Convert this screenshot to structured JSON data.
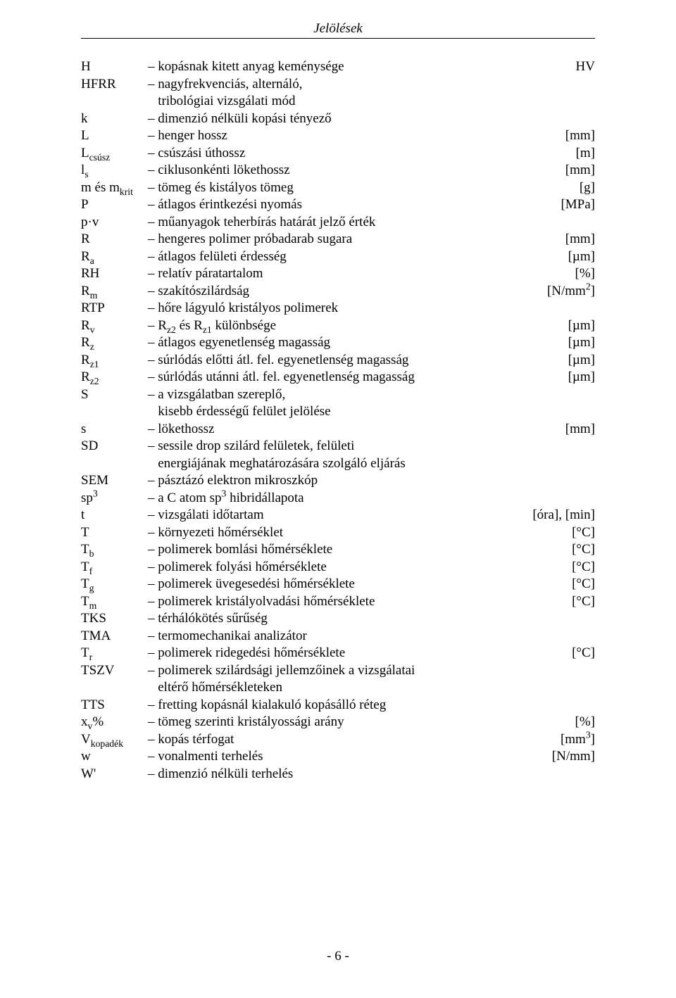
{
  "header": "Jelölések",
  "footer": "- 6 -",
  "rows": [
    {
      "sym": "H",
      "desc": "– kopásnak kitett anyag keménysége",
      "unit": "HV"
    },
    {
      "sym": "HFRR",
      "desc": "– nagyfrekvenciás, alternáló,",
      "unit": ""
    },
    {
      "sym": "",
      "desc": "   tribológiai vizsgálati mód",
      "unit": ""
    },
    {
      "sym": "k",
      "desc": "– dimenzió nélküli kopási tényező",
      "unit": ""
    },
    {
      "sym": "L",
      "desc": "– henger hossz",
      "unit": "[mm]"
    },
    {
      "sym": "L<sub>csúsz</sub>",
      "desc": "– csúszási úthossz",
      "unit": "[m]"
    },
    {
      "sym": "l<sub>s</sub>",
      "desc": "– ciklusonkénti lökethossz",
      "unit": "[mm]"
    },
    {
      "sym": "m és m<sub>krit</sub>",
      "desc": "– tömeg és kistályos tömeg",
      "unit": "[g]"
    },
    {
      "sym": "P",
      "desc": "– átlagos érintkezési nyomás",
      "unit": "[MPa]"
    },
    {
      "sym": "p·v",
      "desc": "– műanyagok teherbírás határát jelző érték",
      "unit": ""
    },
    {
      "sym": "R",
      "desc": "– hengeres polimer próbadarab sugara",
      "unit": "[mm]"
    },
    {
      "sym": "R<sub>a</sub>",
      "desc": "– átlagos felületi érdesség",
      "unit": "[µm]"
    },
    {
      "sym": "RH",
      "desc": "– relatív páratartalom",
      "unit": "[%]"
    },
    {
      "sym": "R<sub>m</sub>",
      "desc": "– szakítószilárdság",
      "unit": "[N/mm<sup>2</sup>]"
    },
    {
      "sym": "RTP",
      "desc": "– hőre lágyuló kristályos polimerek",
      "unit": ""
    },
    {
      "sym": "R<sub>v</sub>",
      "desc": "– R<sub>z2</sub> és R<sub>z1</sub> különbsége",
      "unit": "[µm]"
    },
    {
      "sym": "R<sub>z</sub>",
      "desc": "– átlagos egyenetlenség magasság",
      "unit": "[µm]"
    },
    {
      "sym": "R<sub>z1</sub>",
      "desc": "– súrlódás előtti átl. fel. egyenetlenség magasság",
      "unit": "[µm]"
    },
    {
      "sym": "R<sub>z2</sub>",
      "desc": "– súrlódás utánni átl. fel. egyenetlenség magasság",
      "unit": "[µm]"
    },
    {
      "sym": "S",
      "desc": "– a vizsgálatban szereplő,",
      "unit": ""
    },
    {
      "sym": "",
      "desc": "   kisebb érdességű felület jelölése",
      "unit": ""
    },
    {
      "sym": "s",
      "desc": "– lökethossz",
      "unit": "[mm]"
    },
    {
      "sym": "SD",
      "desc": "– sessile drop szilárd felületek, felületi",
      "unit": ""
    },
    {
      "sym": "",
      "desc": "   energiájának meghatározására szolgáló eljárás",
      "unit": ""
    },
    {
      "sym": "SEM",
      "desc": "– pásztázó elektron mikroszkóp",
      "unit": ""
    },
    {
      "sym": "sp<sup>3</sup>",
      "desc": "– a C atom sp<sup>3</sup> hibridállapota",
      "unit": ""
    },
    {
      "sym": "t",
      "desc": "– vizsgálati időtartam",
      "unit": "[óra], [min]"
    },
    {
      "sym": "T",
      "desc": "– környezeti hőmérséklet",
      "unit": "[°C]"
    },
    {
      "sym": "T<sub>b</sub>",
      "desc": "– polimerek bomlási hőmérséklete",
      "unit": "[°C]"
    },
    {
      "sym": "T<sub>f</sub>",
      "desc": "– polimerek folyási hőmérséklete",
      "unit": "[°C]"
    },
    {
      "sym": "T<sub>g</sub>",
      "desc": "– polimerek üvegesedési hőmérséklete",
      "unit": "[°C]"
    },
    {
      "sym": "T<sub>m</sub>",
      "desc": "– polimerek kristályolvadási hőmérséklete",
      "unit": "[°C]"
    },
    {
      "sym": "TKS",
      "desc": "– térhálókötés sűrűség",
      "unit": ""
    },
    {
      "sym": "TMA",
      "desc": "– termomechanikai analizátor",
      "unit": ""
    },
    {
      "sym": "T<sub>r</sub>",
      "desc": "– polimerek ridegedési hőmérséklete",
      "unit": "[°C]"
    },
    {
      "sym": "TSZV",
      "desc": "– polimerek szilárdsági jellemzőinek a vizsgálatai",
      "unit": ""
    },
    {
      "sym": "",
      "desc": "   eltérő hőmérsékleteken",
      "unit": ""
    },
    {
      "sym": "TTS",
      "desc": "– fretting kopásnál kialakuló kopásálló réteg",
      "unit": ""
    },
    {
      "sym": "x<sub>v</sub>%",
      "desc": "– tömeg szerinti kristályossági arány",
      "unit": "[%]"
    },
    {
      "sym": "V<sub>kopadék</sub>",
      "desc": "– kopás térfogat",
      "unit": "[mm<sup>3</sup>]"
    },
    {
      "sym": "w",
      "desc": "– vonalmenti terhelés",
      "unit": "[N/mm]"
    },
    {
      "sym": "W'",
      "desc": "– dimenzió nélküli terhelés",
      "unit": ""
    }
  ]
}
